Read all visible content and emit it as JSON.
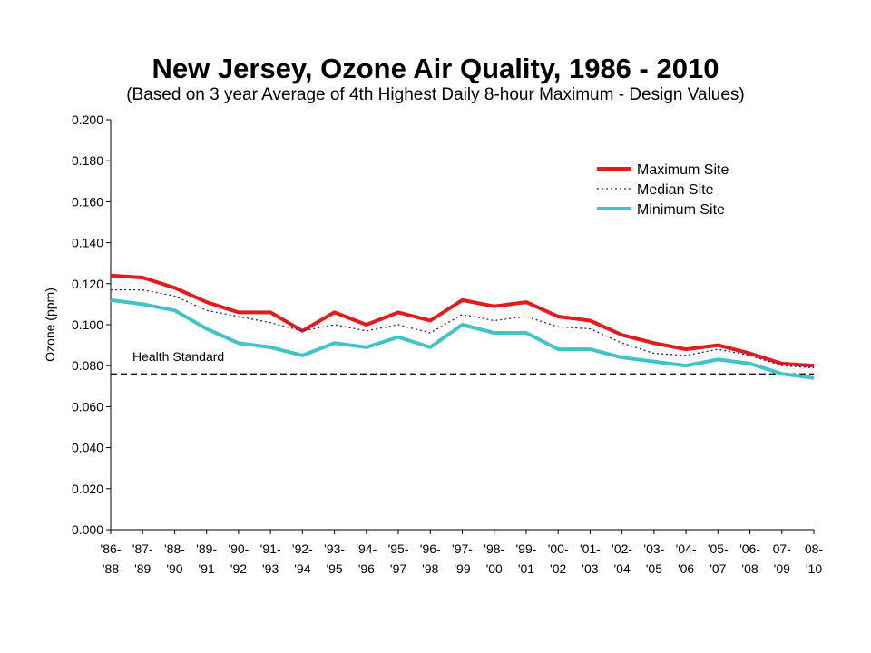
{
  "chart_data": {
    "type": "line",
    "title": "New Jersey, Ozone Air Quality, 1986 - 2010",
    "subtitle": "(Based on 3 year Average of 4th Highest Daily 8-hour Maximum - Design Values)",
    "ylabel": "Ozone  (ppm)",
    "xlabel": "",
    "ylim": [
      0,
      0.2
    ],
    "yticks": [
      "0.000",
      "0.020",
      "0.040",
      "0.060",
      "0.080",
      "0.100",
      "0.120",
      "0.140",
      "0.160",
      "0.180",
      "0.200"
    ],
    "categories": [
      [
        "'86-",
        "'88"
      ],
      [
        "'87-",
        "'89"
      ],
      [
        "'88-",
        "'90"
      ],
      [
        "'89-",
        "'91"
      ],
      [
        "'90-",
        "'92"
      ],
      [
        "'91-",
        "'93"
      ],
      [
        "'92-",
        "'94"
      ],
      [
        "'93-",
        "'95"
      ],
      [
        "'94-",
        "'96"
      ],
      [
        "'95-",
        "'97"
      ],
      [
        "'96-",
        "'98"
      ],
      [
        "'97-",
        "'99"
      ],
      [
        "'98-",
        "'00"
      ],
      [
        "'99-",
        "'01"
      ],
      [
        "'00-",
        "'02"
      ],
      [
        "'01-",
        "'03"
      ],
      [
        "'02-",
        "'04"
      ],
      [
        "'03-",
        "'05"
      ],
      [
        "'04-",
        "'06"
      ],
      [
        "'05-",
        "'07"
      ],
      [
        "'06-",
        "'08"
      ],
      [
        "07-",
        "'09"
      ],
      [
        "08-",
        "'10"
      ]
    ],
    "series": [
      {
        "name": "Maximum Site",
        "color": "#e31b1b",
        "style": "solid",
        "values": [
          0.124,
          0.123,
          0.118,
          0.111,
          0.106,
          0.106,
          0.097,
          0.106,
          0.1,
          0.106,
          0.102,
          0.112,
          0.109,
          0.111,
          0.104,
          0.102,
          0.095,
          0.091,
          0.088,
          0.09,
          0.086,
          0.081,
          0.08
        ]
      },
      {
        "name": "Median Site",
        "color": "#1a1aa8",
        "style": "dotted",
        "values": [
          0.117,
          0.117,
          0.114,
          0.107,
          0.104,
          0.101,
          0.097,
          0.1,
          0.097,
          0.1,
          0.096,
          0.105,
          0.102,
          0.104,
          0.099,
          0.098,
          0.091,
          0.086,
          0.085,
          0.088,
          0.085,
          0.08,
          0.079
        ]
      },
      {
        "name": "Minimum Site",
        "color": "#3fc4c8",
        "style": "solid",
        "values": [
          0.112,
          0.11,
          0.107,
          0.098,
          0.091,
          0.089,
          0.085,
          0.091,
          0.089,
          0.094,
          0.089,
          0.1,
          0.096,
          0.096,
          0.088,
          0.088,
          0.084,
          0.082,
          0.08,
          0.083,
          0.081,
          0.076,
          0.074
        ]
      }
    ],
    "reference_line": {
      "label": "Health Standard",
      "value": 0.076,
      "style": "dashed",
      "color": "#000000"
    },
    "grid": false,
    "legend_position": "top-right"
  }
}
